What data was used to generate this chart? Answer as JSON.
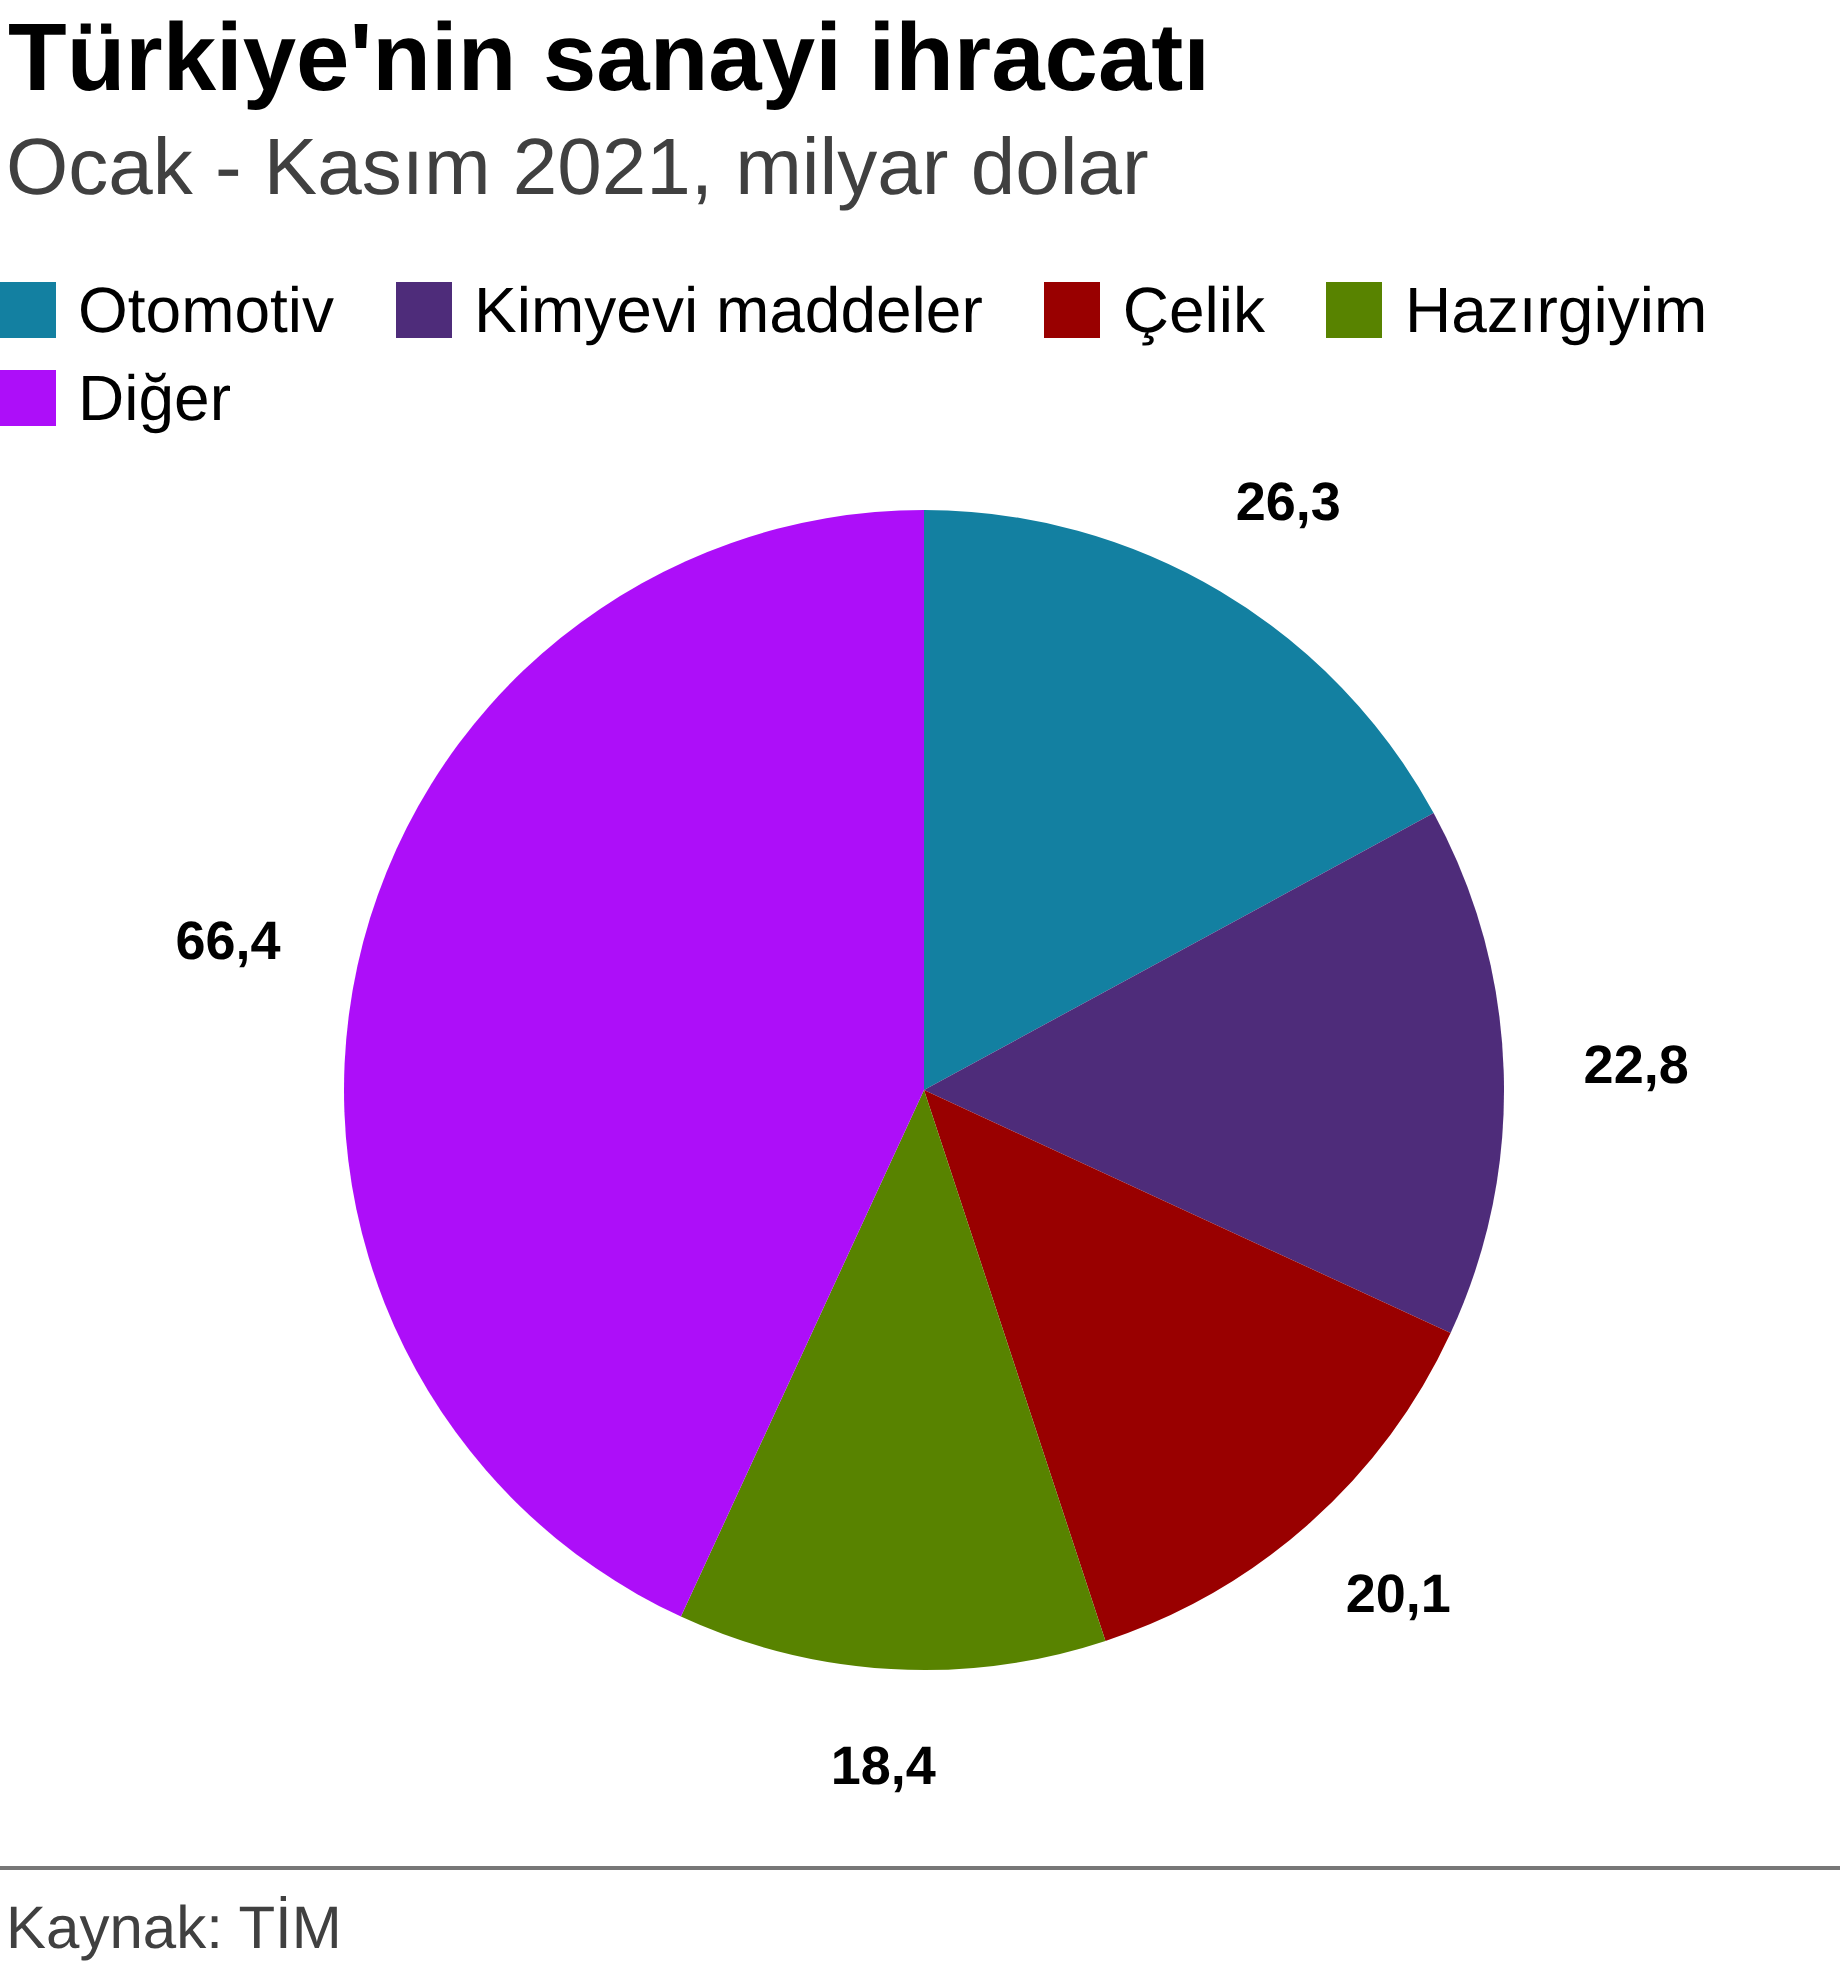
{
  "chart_data": {
    "type": "pie",
    "title": "Türkiye'nin sanayi ihracatı",
    "subtitle": "Ocak - Kasım 2021, milyar dolar",
    "categories": [
      "Otomotiv",
      "Kimyevi maddeler",
      "Çelik",
      "Hazırgiyim",
      "Diğer"
    ],
    "values": [
      26.3,
      22.8,
      20.1,
      18.4,
      66.4
    ],
    "colors": [
      "#1380a1",
      "#4e2c7a",
      "#990000",
      "#588300",
      "#ad0ef9"
    ],
    "value_labels": [
      "26,3",
      "22,8",
      "20,1",
      "18,4",
      "66,4"
    ],
    "legend": "top left",
    "annotations": [
      "Kaynak: TİM"
    ]
  }
}
